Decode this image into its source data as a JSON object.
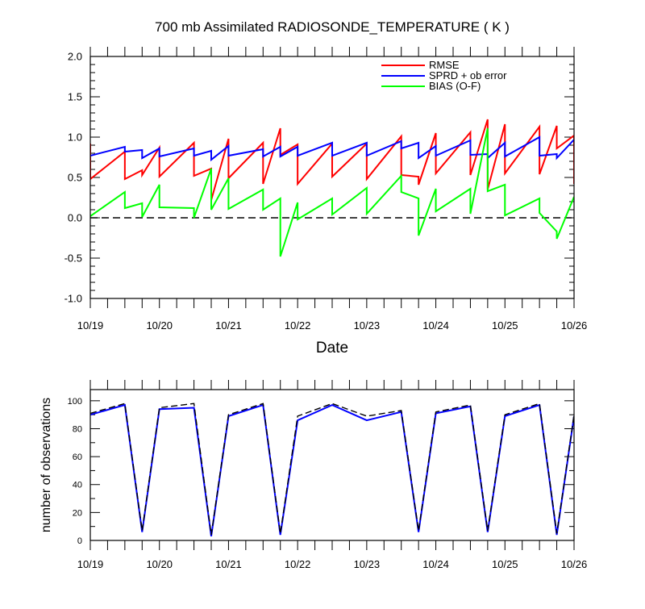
{
  "figure": {
    "title": "700 mb Assimilated RADIOSONDE_TEMPERATURE ( K )"
  },
  "chart_data": [
    {
      "type": "line",
      "title": "700 mb Assimilated RADIOSONDE_TEMPERATURE ( K )",
      "xlabel": "Date",
      "ylabel": "",
      "xlim": [
        0,
        7
      ],
      "ylim": [
        -1.0,
        2.0
      ],
      "grid": false,
      "legend_position": "top-right",
      "x_ticks": [
        0,
        1,
        2,
        3,
        4,
        5,
        6,
        7
      ],
      "x_tick_labels": [
        "10/19",
        "10/20",
        "10/21",
        "10/22",
        "10/23",
        "10/24",
        "10/25",
        "10/26"
      ],
      "y_ticks": [
        -1.0,
        -0.5,
        0.0,
        0.5,
        1.0,
        1.5,
        2.0
      ],
      "y_tick_labels": [
        "-1.0",
        "-0.5",
        "0.0",
        "0.5",
        "1.0",
        "1.5",
        "2.0"
      ],
      "reference_line": {
        "y": 0.0,
        "style": "dashed",
        "color": "#000000"
      },
      "series": [
        {
          "name": "RMSE",
          "color": "#ff0000",
          "points": [
            [
              0,
              0.92
            ],
            [
              0,
              0.48
            ],
            [
              0.5,
              0.82
            ],
            [
              0.5,
              0.48
            ],
            [
              0.75,
              0.59
            ],
            [
              0.75,
              0.53
            ],
            [
              1,
              0.87
            ],
            [
              1,
              0.51
            ],
            [
              1.5,
              0.93
            ],
            [
              1.5,
              0.52
            ],
            [
              1.75,
              0.61
            ],
            [
              1.75,
              0.22
            ],
            [
              2,
              0.98
            ],
            [
              2,
              0.49
            ],
            [
              2.5,
              0.93
            ],
            [
              2.5,
              0.42
            ],
            [
              2.75,
              1.11
            ],
            [
              2.75,
              0.78
            ],
            [
              3,
              0.91
            ],
            [
              3,
              0.42
            ],
            [
              3.5,
              0.92
            ],
            [
              3.5,
              0.51
            ],
            [
              4,
              0.92
            ],
            [
              4,
              0.48
            ],
            [
              4.5,
              1.01
            ],
            [
              4.5,
              0.53
            ],
            [
              4.75,
              0.51
            ],
            [
              4.75,
              0.41
            ],
            [
              5,
              1.05
            ],
            [
              5,
              0.55
            ],
            [
              5.5,
              1.06
            ],
            [
              5.5,
              0.53
            ],
            [
              5.75,
              1.22
            ],
            [
              5.75,
              0.35
            ],
            [
              6,
              1.16
            ],
            [
              6,
              0.55
            ],
            [
              6.5,
              1.13
            ],
            [
              6.5,
              0.54
            ],
            [
              6.75,
              1.14
            ],
            [
              6.75,
              0.86
            ],
            [
              7,
              1.02
            ],
            [
              7,
              0.42
            ]
          ]
        },
        {
          "name": "SPRD + ob error",
          "color": "#0000ff",
          "points": [
            [
              0,
              0.77
            ],
            [
              0.5,
              0.88
            ],
            [
              0.5,
              0.82
            ],
            [
              0.75,
              0.84
            ],
            [
              0.75,
              0.74
            ],
            [
              1,
              0.86
            ],
            [
              1,
              0.76
            ],
            [
              1.5,
              0.86
            ],
            [
              1.5,
              0.77
            ],
            [
              1.75,
              0.83
            ],
            [
              1.75,
              0.72
            ],
            [
              2,
              0.89
            ],
            [
              2,
              0.77
            ],
            [
              2.5,
              0.85
            ],
            [
              2.5,
              0.76
            ],
            [
              2.75,
              0.88
            ],
            [
              2.75,
              0.76
            ],
            [
              3,
              0.88
            ],
            [
              3,
              0.77
            ],
            [
              3.5,
              0.93
            ],
            [
              3.5,
              0.77
            ],
            [
              4,
              0.93
            ],
            [
              4,
              0.77
            ],
            [
              4.5,
              0.95
            ],
            [
              4.5,
              0.86
            ],
            [
              4.75,
              0.93
            ],
            [
              4.75,
              0.74
            ],
            [
              5,
              0.89
            ],
            [
              5,
              0.77
            ],
            [
              5.5,
              0.96
            ],
            [
              5.5,
              0.78
            ],
            [
              5.75,
              0.79
            ],
            [
              5.75,
              0.74
            ],
            [
              6,
              0.93
            ],
            [
              6,
              0.76
            ],
            [
              6.5,
              1.0
            ],
            [
              6.5,
              0.77
            ],
            [
              6.75,
              0.79
            ],
            [
              6.75,
              0.74
            ],
            [
              7,
              0.97
            ]
          ]
        },
        {
          "name": "BIAS (O-F)",
          "color": "#00ff00",
          "points": [
            [
              0,
              0.02
            ],
            [
              0.5,
              0.32
            ],
            [
              0.5,
              0.12
            ],
            [
              0.75,
              0.18
            ],
            [
              0.75,
              0.01
            ],
            [
              1,
              0.41
            ],
            [
              1,
              0.13
            ],
            [
              1.5,
              0.12
            ],
            [
              1.5,
              0.0
            ],
            [
              1.75,
              0.61
            ],
            [
              1.75,
              0.1
            ],
            [
              2,
              0.49
            ],
            [
              2,
              0.11
            ],
            [
              2.5,
              0.35
            ],
            [
              2.5,
              0.1
            ],
            [
              2.75,
              0.24
            ],
            [
              2.75,
              -0.48
            ],
            [
              3,
              0.19
            ],
            [
              3,
              -0.02
            ],
            [
              3.5,
              0.24
            ],
            [
              3.5,
              0.04
            ],
            [
              4,
              0.37
            ],
            [
              4,
              0.05
            ],
            [
              4.5,
              0.52
            ],
            [
              4.5,
              0.32
            ],
            [
              4.75,
              0.24
            ],
            [
              4.75,
              -0.22
            ],
            [
              5,
              0.36
            ],
            [
              5,
              0.08
            ],
            [
              5.5,
              0.36
            ],
            [
              5.5,
              0.05
            ],
            [
              5.75,
              1.11
            ],
            [
              5.75,
              0.33
            ],
            [
              6,
              0.41
            ],
            [
              6,
              0.03
            ],
            [
              6.5,
              0.24
            ],
            [
              6.5,
              0.06
            ],
            [
              6.75,
              -0.17
            ],
            [
              6.75,
              -0.26
            ],
            [
              7,
              0.26
            ]
          ]
        }
      ]
    },
    {
      "type": "line",
      "title": "",
      "xlabel": "",
      "ylabel": "number of observations",
      "xlim": [
        0,
        7
      ],
      "ylim": [
        0,
        108
      ],
      "grid": false,
      "x_ticks": [
        0,
        1,
        2,
        3,
        4,
        5,
        6,
        7
      ],
      "x_tick_labels": [
        "10/19",
        "10/20",
        "10/21",
        "10/22",
        "10/23",
        "10/24",
        "10/25",
        "10/26"
      ],
      "y_ticks": [
        0,
        20,
        40,
        60,
        80,
        100
      ],
      "y_tick_labels": [
        "0",
        "20",
        "40",
        "60",
        "80",
        "100"
      ],
      "series": [
        {
          "color": "#0000ff",
          "style": "solid",
          "points": [
            [
              0,
              90
            ],
            [
              0.5,
              97
            ],
            [
              0.75,
              6
            ],
            [
              1,
              94
            ],
            [
              1.5,
              95
            ],
            [
              1.75,
              3
            ],
            [
              2,
              89
            ],
            [
              2.5,
              97
            ],
            [
              2.75,
              4
            ],
            [
              3,
              86
            ],
            [
              3.5,
              97
            ],
            [
              4,
              86
            ],
            [
              4.5,
              92
            ],
            [
              4.75,
              6
            ],
            [
              5,
              91
            ],
            [
              5.5,
              96
            ],
            [
              5.75,
              6
            ],
            [
              6,
              89
            ],
            [
              6.5,
              97
            ],
            [
              6.75,
              4
            ],
            [
              7,
              89
            ]
          ]
        },
        {
          "color": "#000000",
          "style": "dashed",
          "points": [
            [
              0,
              91
            ],
            [
              0.5,
              98
            ],
            [
              0.75,
              7
            ],
            [
              1,
              95
            ],
            [
              1.5,
              98
            ],
            [
              1.75,
              4
            ],
            [
              2,
              90
            ],
            [
              2.5,
              98
            ],
            [
              2.75,
              5
            ],
            [
              3,
              89
            ],
            [
              3.5,
              98
            ],
            [
              4,
              89
            ],
            [
              4.5,
              93
            ],
            [
              4.75,
              7
            ],
            [
              5,
              92
            ],
            [
              5.5,
              97
            ],
            [
              5.75,
              7
            ],
            [
              6,
              90
            ],
            [
              6.5,
              98
            ],
            [
              6.75,
              5
            ],
            [
              7,
              90
            ]
          ]
        }
      ]
    }
  ]
}
